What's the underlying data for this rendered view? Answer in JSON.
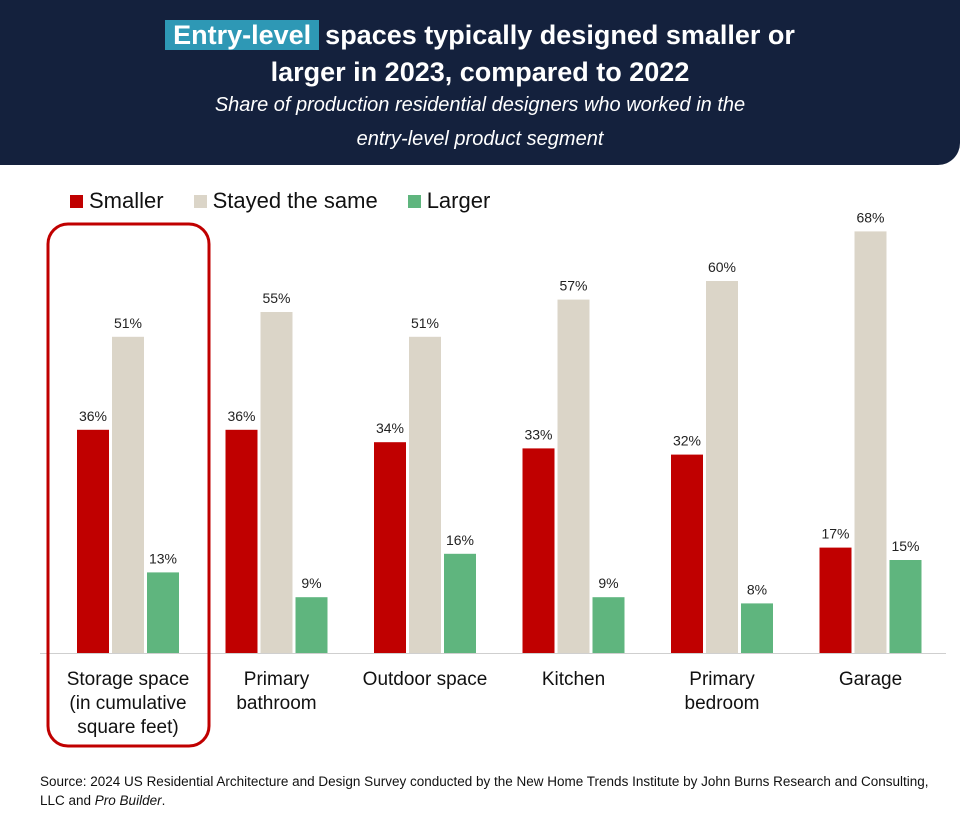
{
  "header": {
    "title_highlight": "Entry-level",
    "title_rest": "spaces typically designed smaller or",
    "title_line2": "larger in 2023, compared to 2022",
    "subtitle_line1": "Share of production residential designers who worked in the",
    "subtitle_line2": "entry-level product segment"
  },
  "colors": {
    "header_bg": "#14213d",
    "highlight": "#2e98b5",
    "smaller": "#c00000",
    "same": "#dbd5c8",
    "larger": "#5fb57e",
    "callout": "#c00000"
  },
  "source": {
    "text": "Source: 2024 US Residential Architecture and Design Survey conducted by the New Home Trends Institute by John Burns Research and Consulting, LLC and ",
    "italic": "Pro Builder",
    "end": "."
  },
  "chart_data": {
    "type": "bar",
    "title": "Entry-level spaces typically designed smaller or larger in 2023, compared to 2022",
    "subtitle": "Share of production residential designers who worked in the entry-level product segment",
    "xlabel": "",
    "ylabel": "",
    "ylim": [
      0,
      70
    ],
    "grid": false,
    "legend_position": "top-left",
    "categories": [
      [
        "Storage space",
        "(in cumulative",
        "square feet)"
      ],
      [
        "Primary",
        "bathroom"
      ],
      [
        "Outdoor space"
      ],
      [
        "Kitchen"
      ],
      [
        "Primary",
        "bedroom"
      ],
      [
        "Garage"
      ]
    ],
    "highlighted_category": 0,
    "series": [
      {
        "name": "Smaller",
        "color": "#c00000",
        "values": [
          36,
          36,
          34,
          33,
          32,
          17
        ]
      },
      {
        "name": "Stayed the same",
        "color": "#dbd5c8",
        "values": [
          51,
          55,
          51,
          57,
          60,
          68
        ]
      },
      {
        "name": "Larger",
        "color": "#5fb57e",
        "values": [
          13,
          9,
          16,
          9,
          8,
          15
        ]
      }
    ],
    "value_suffix": "%"
  }
}
